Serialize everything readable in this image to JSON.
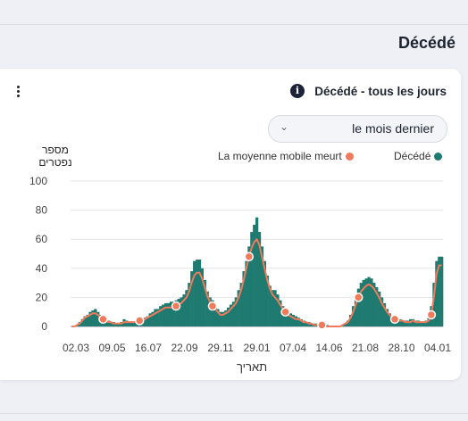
{
  "section": {
    "title": "Décédé"
  },
  "card": {
    "title": "Décédé - tous les jours",
    "info_glyph": "i",
    "range_select": {
      "value": "le mois dernier"
    }
  },
  "colors": {
    "bars": "#1f7a70",
    "line": "#f07a5a",
    "grid": "#e3e6eb",
    "axis": "#9aa0a8"
  },
  "chart_data": {
    "type": "bar",
    "title": "Décédé - tous les jours",
    "ylabel_lines": [
      "מספר",
      "נפטרים"
    ],
    "xlabel": "תאריך",
    "ylim": [
      0,
      100
    ],
    "yticks": [
      0,
      20,
      40,
      60,
      80,
      100
    ],
    "grid": true,
    "legend_position": "top",
    "xticks": [
      "02.03",
      "09.05",
      "16.07",
      "22.09",
      "29.11",
      "29.01",
      "07.04",
      "14.06",
      "21.08",
      "28.10",
      "04.01"
    ],
    "series": [
      {
        "name": "Décédé",
        "kind": "bar",
        "values": [
          0,
          0,
          1,
          3,
          5,
          7,
          8,
          10,
          11,
          12,
          10,
          8,
          6,
          5,
          4,
          3,
          3,
          2,
          2,
          3,
          5,
          4,
          3,
          3,
          3,
          4,
          4,
          5,
          6,
          7,
          9,
          10,
          12,
          12,
          14,
          15,
          16,
          16,
          17,
          17,
          18,
          19,
          20,
          22,
          25,
          30,
          38,
          45,
          46,
          46,
          40,
          32,
          24,
          20,
          18,
          15,
          12,
          10,
          10,
          11,
          13,
          15,
          17,
          20,
          25,
          30,
          38,
          45,
          55,
          65,
          70,
          75,
          65,
          55,
          45,
          35,
          28,
          25,
          25,
          22,
          18,
          14,
          12,
          10,
          9,
          8,
          7,
          6,
          5,
          4,
          3,
          3,
          2,
          2,
          2,
          1,
          1,
          1,
          1,
          0,
          0,
          0,
          0,
          0,
          1,
          2,
          4,
          8,
          14,
          20,
          26,
          30,
          32,
          33,
          34,
          33,
          30,
          27,
          24,
          20,
          16,
          12,
          9,
          7,
          6,
          5,
          5,
          4,
          4,
          4,
          5,
          5,
          4,
          4,
          3,
          3,
          4,
          6,
          14,
          30,
          45,
          48,
          48
        ]
      },
      {
        "name": "La moyenne mobile meurt",
        "kind": "line",
        "values": [
          0,
          0,
          1,
          2,
          4,
          6,
          7,
          8,
          9,
          9,
          8,
          6,
          5,
          4,
          3,
          3,
          2,
          2,
          2,
          2,
          3,
          3,
          3,
          3,
          3,
          3,
          4,
          4,
          5,
          6,
          7,
          8,
          9,
          10,
          11,
          12,
          13,
          13,
          13,
          14,
          14,
          15,
          16,
          18,
          20,
          24,
          30,
          35,
          37,
          37,
          33,
          27,
          21,
          17,
          14,
          12,
          10,
          8,
          8,
          9,
          10,
          12,
          14,
          16,
          20,
          25,
          32,
          40,
          48,
          54,
          58,
          60,
          56,
          48,
          40,
          32,
          26,
          22,
          20,
          18,
          15,
          12,
          10,
          8,
          7,
          6,
          5,
          5,
          4,
          3,
          3,
          2,
          2,
          1,
          1,
          1,
          1,
          0,
          0,
          0,
          0,
          0,
          0,
          0,
          1,
          2,
          3,
          6,
          10,
          15,
          20,
          24,
          26,
          28,
          29,
          28,
          26,
          23,
          20,
          16,
          13,
          10,
          8,
          6,
          5,
          4,
          4,
          4,
          3,
          3,
          3,
          4,
          3,
          3,
          3,
          3,
          3,
          4,
          8,
          20,
          36,
          42,
          42
        ]
      }
    ],
    "marker_indices": [
      12,
      26,
      40,
      54,
      68,
      82,
      96,
      110,
      124,
      138
    ]
  }
}
